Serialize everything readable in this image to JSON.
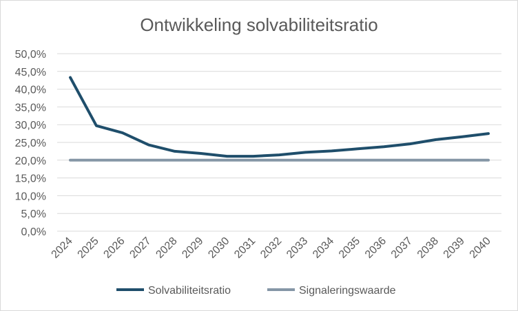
{
  "chart_data": {
    "type": "line",
    "title": "Ontwikkeling solvabiliteitsratio",
    "xlabel": "",
    "ylabel": "",
    "categories": [
      "2024",
      "2025",
      "2026",
      "2027",
      "2028",
      "2029",
      "2030",
      "2031",
      "2032",
      "2033",
      "2034",
      "2035",
      "2036",
      "2037",
      "2038",
      "2039",
      "2040"
    ],
    "ylim": [
      0,
      0.5
    ],
    "yticks": [
      "0,0%",
      "5,0%",
      "10,0%",
      "15,0%",
      "20,0%",
      "25,0%",
      "30,0%",
      "35,0%",
      "40,0%",
      "45,0%",
      "50,0%"
    ],
    "grid": true,
    "legend_position": "bottom",
    "series": [
      {
        "name": "Solvabiliteitsratio",
        "color": "#1f4e6b",
        "values": [
          0.433,
          0.297,
          0.277,
          0.243,
          0.225,
          0.219,
          0.211,
          0.211,
          0.215,
          0.222,
          0.226,
          0.232,
          0.238,
          0.246,
          0.258,
          0.266,
          0.275
        ]
      },
      {
        "name": "Signaleringswaarde",
        "color": "#8596a6",
        "values": [
          0.2,
          0.2,
          0.2,
          0.2,
          0.2,
          0.2,
          0.2,
          0.2,
          0.2,
          0.2,
          0.2,
          0.2,
          0.2,
          0.2,
          0.2,
          0.2,
          0.2
        ]
      }
    ]
  }
}
